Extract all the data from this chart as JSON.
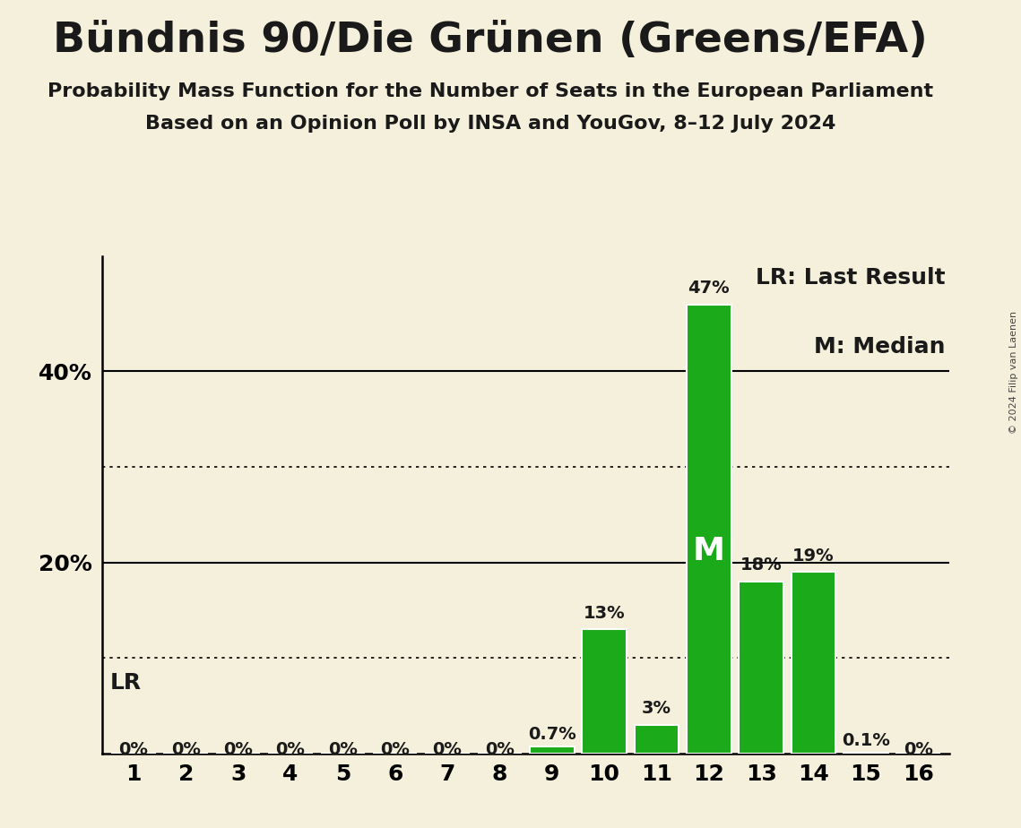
{
  "title": "Bündnis 90/Die Grünen (Greens/EFA)",
  "subtitle1": "Probability Mass Function for the Number of Seats in the European Parliament",
  "subtitle2": "Based on an Opinion Poll by INSA and YouGov, 8–12 July 2024",
  "categories": [
    1,
    2,
    3,
    4,
    5,
    6,
    7,
    8,
    9,
    10,
    11,
    12,
    13,
    14,
    15,
    16
  ],
  "values": [
    0.0,
    0.0,
    0.0,
    0.0,
    0.0,
    0.0,
    0.0,
    0.0,
    0.7,
    13.0,
    3.0,
    47.0,
    18.0,
    19.0,
    0.1,
    0.0
  ],
  "bar_color": "#1aaa1a",
  "background_color": "#f5f0dc",
  "text_color": "#1a1a1a",
  "median_seat": 12,
  "lr_seat": 12,
  "solid_grid_lines": [
    20,
    40
  ],
  "dotted_grid_lines": [
    10,
    30
  ],
  "legend_text1": "LR: Last Result",
  "legend_text2": "M: Median",
  "lr_label": "LR",
  "median_label": "M",
  "copyright_text": "© 2024 Filip van Laenen",
  "title_fontsize": 34,
  "subtitle_fontsize": 16,
  "bar_label_fontsize": 14,
  "axis_tick_fontsize": 18,
  "legend_fontsize": 18,
  "median_fontsize": 26,
  "lr_fontsize": 18,
  "ylim": [
    0,
    52
  ]
}
